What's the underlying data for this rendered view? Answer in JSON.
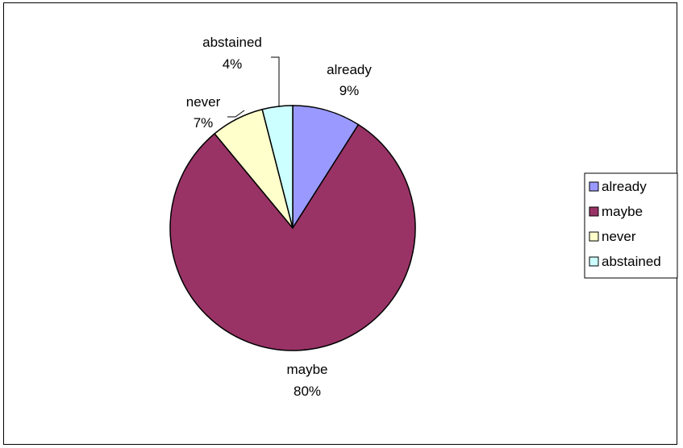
{
  "chart_data": {
    "type": "pie",
    "title": "",
    "slices": [
      {
        "label": "already",
        "value": 9,
        "percent_label": "9%",
        "color": "#9999ff"
      },
      {
        "label": "maybe",
        "value": 80,
        "percent_label": "80%",
        "color": "#993366"
      },
      {
        "label": "never",
        "value": 7,
        "percent_label": "7%",
        "color": "#ffffcc"
      },
      {
        "label": "abstained",
        "value": 4,
        "percent_label": "4%",
        "color": "#ccffff"
      }
    ],
    "start_angle": "12 o'clock",
    "direction": "clockwise",
    "legend": {
      "position": "right",
      "entries": [
        "already",
        "maybe",
        "never",
        "abstained"
      ]
    }
  }
}
